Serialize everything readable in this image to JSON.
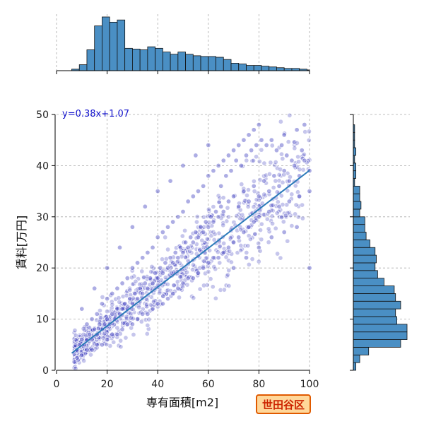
{
  "chart_data": {
    "type": "scatter",
    "title": "",
    "xlabel": "専有面積[m2]",
    "ylabel": "賃料[万円]",
    "xlim": [
      0,
      100
    ],
    "ylim": [
      0,
      50
    ],
    "xticks": [
      0,
      20,
      40,
      60,
      80,
      100
    ],
    "yticks": [
      0,
      10,
      20,
      30,
      40,
      50
    ],
    "grid": true,
    "point_color": "#3333bb",
    "regression": {
      "label": "y=0.38x+1.07",
      "slope": 0.38,
      "intercept": 1.07,
      "x_range": [
        6,
        100
      ],
      "color": "#2b7bb9"
    },
    "scatter_points": [
      [
        8,
        4
      ],
      [
        9,
        5
      ],
      [
        10,
        6
      ],
      [
        11,
        5
      ],
      [
        12,
        6
      ],
      [
        13,
        7
      ],
      [
        14,
        6
      ],
      [
        15,
        8
      ],
      [
        16,
        7
      ],
      [
        17,
        9
      ],
      [
        18,
        8
      ],
      [
        19,
        9
      ],
      [
        20,
        10
      ],
      [
        21,
        9
      ],
      [
        22,
        11
      ],
      [
        23,
        10
      ],
      [
        24,
        12
      ],
      [
        25,
        11
      ],
      [
        26,
        12
      ],
      [
        27,
        13
      ],
      [
        28,
        12
      ],
      [
        29,
        14
      ],
      [
        30,
        13
      ],
      [
        31,
        15
      ],
      [
        32,
        14
      ],
      [
        33,
        16
      ],
      [
        34,
        15
      ],
      [
        35,
        17
      ],
      [
        36,
        16
      ],
      [
        37,
        18
      ],
      [
        38,
        17
      ],
      [
        39,
        19
      ],
      [
        40,
        18
      ],
      [
        41,
        20
      ],
      [
        42,
        19
      ],
      [
        43,
        21
      ],
      [
        44,
        20
      ],
      [
        45,
        22
      ],
      [
        46,
        21
      ],
      [
        47,
        23
      ],
      [
        48,
        22
      ],
      [
        49,
        24
      ],
      [
        50,
        23
      ],
      [
        51,
        25
      ],
      [
        52,
        24
      ],
      [
        53,
        26
      ],
      [
        54,
        25
      ],
      [
        55,
        27
      ],
      [
        56,
        26
      ],
      [
        57,
        28
      ],
      [
        58,
        27
      ],
      [
        59,
        29
      ],
      [
        60,
        28
      ],
      [
        61,
        30
      ],
      [
        62,
        29
      ],
      [
        63,
        31
      ],
      [
        64,
        30
      ],
      [
        65,
        32
      ],
      [
        66,
        31
      ],
      [
        68,
        33
      ],
      [
        70,
        34
      ],
      [
        72,
        32
      ],
      [
        74,
        35
      ],
      [
        76,
        33
      ],
      [
        78,
        36
      ],
      [
        80,
        34
      ],
      [
        82,
        37
      ],
      [
        84,
        35
      ],
      [
        86,
        38
      ],
      [
        88,
        36
      ],
      [
        90,
        39
      ],
      [
        92,
        37
      ],
      [
        94,
        40
      ],
      [
        96,
        38
      ],
      [
        98,
        41
      ],
      [
        100,
        39
      ],
      [
        12,
        9
      ],
      [
        14,
        10
      ],
      [
        16,
        11
      ],
      [
        18,
        13
      ],
      [
        20,
        14
      ],
      [
        22,
        15
      ],
      [
        24,
        16
      ],
      [
        26,
        17
      ],
      [
        28,
        18
      ],
      [
        30,
        20
      ],
      [
        32,
        21
      ],
      [
        34,
        22
      ],
      [
        36,
        23
      ],
      [
        38,
        24
      ],
      [
        40,
        26
      ],
      [
        42,
        27
      ],
      [
        44,
        28
      ],
      [
        46,
        29
      ],
      [
        48,
        30
      ],
      [
        50,
        31
      ],
      [
        52,
        33
      ],
      [
        54,
        34
      ],
      [
        56,
        35
      ],
      [
        58,
        36
      ],
      [
        60,
        38
      ],
      [
        62,
        39
      ],
      [
        64,
        40
      ],
      [
        66,
        41
      ],
      [
        68,
        42
      ],
      [
        70,
        43
      ],
      [
        72,
        44
      ],
      [
        74,
        45
      ],
      [
        76,
        46
      ],
      [
        78,
        47
      ],
      [
        80,
        48
      ],
      [
        85,
        45
      ],
      [
        90,
        46
      ],
      [
        95,
        47
      ],
      [
        98,
        48
      ],
      [
        10,
        3
      ],
      [
        12,
        4
      ],
      [
        14,
        4
      ],
      [
        16,
        5
      ],
      [
        18,
        5
      ],
      [
        20,
        6
      ],
      [
        22,
        7
      ],
      [
        24,
        7
      ],
      [
        26,
        8
      ],
      [
        28,
        9
      ],
      [
        30,
        9
      ],
      [
        32,
        10
      ],
      [
        34,
        11
      ],
      [
        36,
        11
      ],
      [
        38,
        12
      ],
      [
        40,
        13
      ],
      [
        42,
        13
      ],
      [
        44,
        14
      ],
      [
        46,
        15
      ],
      [
        48,
        16
      ],
      [
        50,
        17
      ],
      [
        52,
        18
      ],
      [
        54,
        18
      ],
      [
        56,
        19
      ],
      [
        58,
        20
      ],
      [
        60,
        21
      ],
      [
        62,
        22
      ],
      [
        64,
        22
      ],
      [
        66,
        23
      ],
      [
        68,
        24
      ],
      [
        70,
        25
      ],
      [
        72,
        26
      ],
      [
        74,
        27
      ],
      [
        76,
        28
      ],
      [
        78,
        29
      ],
      [
        80,
        30
      ],
      [
        84,
        31
      ],
      [
        88,
        32
      ],
      [
        92,
        33
      ],
      [
        96,
        34
      ],
      [
        100,
        35
      ],
      [
        100,
        20
      ],
      [
        95,
        28
      ],
      [
        90,
        27
      ],
      [
        85,
        26
      ],
      [
        80,
        24
      ],
      [
        75,
        22
      ],
      [
        70,
        20
      ],
      [
        60,
        44
      ],
      [
        55,
        42
      ],
      [
        50,
        40
      ],
      [
        45,
        37
      ],
      [
        40,
        35
      ],
      [
        35,
        32
      ],
      [
        30,
        28
      ],
      [
        25,
        24
      ],
      [
        20,
        20
      ],
      [
        15,
        16
      ],
      [
        10,
        12
      ],
      [
        65,
        36
      ],
      [
        67,
        38
      ],
      [
        69,
        39
      ],
      [
        71,
        41
      ],
      [
        73,
        40
      ],
      [
        75,
        42
      ],
      [
        77,
        43
      ],
      [
        79,
        44
      ],
      [
        81,
        45
      ],
      [
        83,
        44
      ],
      [
        87,
        43
      ],
      [
        89,
        44
      ],
      [
        91,
        42
      ],
      [
        93,
        41
      ],
      [
        97,
        43
      ]
    ],
    "top_histogram": {
      "bin_edges": [
        0,
        3,
        6,
        9,
        12,
        15,
        18,
        21,
        24,
        27,
        30,
        33,
        36,
        39,
        42,
        45,
        48,
        51,
        54,
        57,
        60,
        63,
        66,
        69,
        72,
        75,
        78,
        81,
        84,
        87,
        90,
        93,
        96,
        99,
        102
      ],
      "counts": [
        0,
        0,
        2,
        8,
        28,
        60,
        72,
        65,
        68,
        30,
        29,
        28,
        32,
        30,
        25,
        22,
        25,
        22,
        20,
        19,
        19,
        18,
        15,
        10,
        9,
        7,
        7,
        6,
        5,
        4,
        3,
        3,
        2,
        1
      ]
    },
    "right_histogram": {
      "bin_edges": [
        0,
        1.5,
        3,
        4.5,
        6,
        7.5,
        9,
        10.5,
        12,
        13.5,
        15,
        16.5,
        18,
        19.5,
        21,
        22.5,
        24,
        25.5,
        27,
        28.5,
        30,
        31.5,
        33,
        34.5,
        36,
        37.5,
        39,
        40.5,
        42,
        43.5,
        45,
        46.5,
        48,
        49.5
      ],
      "counts": [
        2,
        5,
        12,
        37,
        42,
        42,
        34,
        33,
        37,
        33,
        32,
        24,
        19,
        17,
        18,
        17,
        13,
        10,
        9,
        9,
        5,
        6,
        5,
        5,
        1,
        2,
        2,
        1,
        2,
        1,
        1,
        1,
        0
      ]
    }
  },
  "ward_label": "世田谷区",
  "ward_badge_colors": {
    "border": "#e05a00",
    "background": "#ffd79a",
    "text": "#cc2200"
  },
  "hist_bar_color": "#4a8fc4"
}
